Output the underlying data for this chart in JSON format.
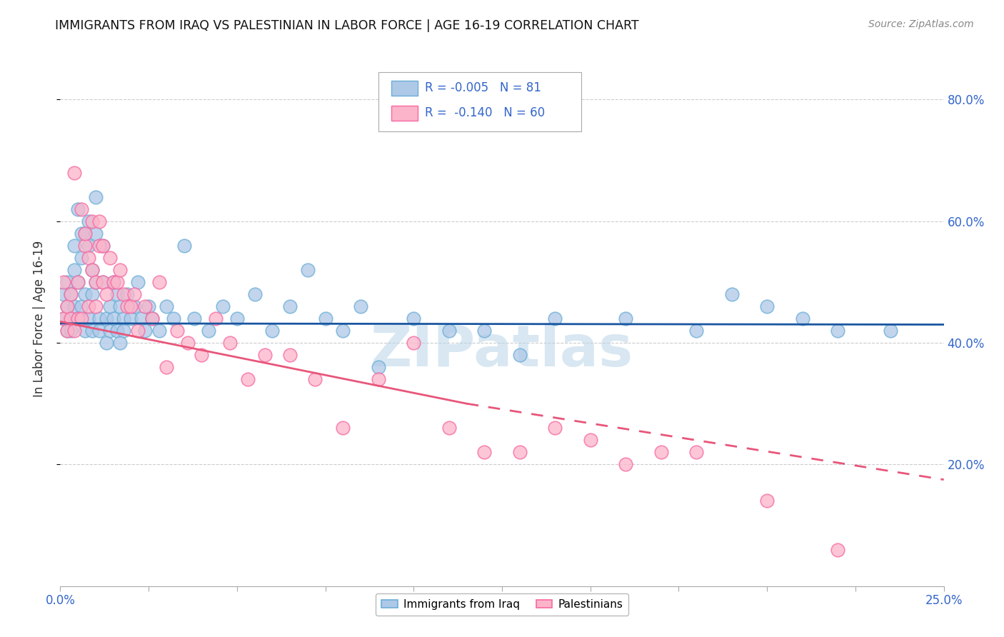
{
  "title": "IMMIGRANTS FROM IRAQ VS PALESTINIAN IN LABOR FORCE | AGE 16-19 CORRELATION CHART",
  "source": "Source: ZipAtlas.com",
  "ylabel": "In Labor Force | Age 16-19",
  "xlim": [
    0.0,
    0.25
  ],
  "ylim": [
    0.0,
    0.88
  ],
  "xtick_vals": [
    0.0,
    0.025,
    0.05,
    0.075,
    0.1,
    0.125,
    0.15,
    0.175,
    0.2,
    0.225,
    0.25
  ],
  "ytick_vals": [
    0.2,
    0.4,
    0.6,
    0.8
  ],
  "right_ytick_labels": [
    "20.0%",
    "40.0%",
    "60.0%",
    "80.0%"
  ],
  "iraq_R": "-0.005",
  "iraq_N": "81",
  "pal_R": "-0.140",
  "pal_N": "60",
  "iraq_color": "#6baed6",
  "iraq_fill": "#aec8e8",
  "pal_color": "#f768a1",
  "pal_fill": "#fbb4c9",
  "trend_iraq_color": "#1a56a0",
  "trend_pal_color": "#e8567a",
  "watermark": "ZIPatlas",
  "watermark_color": "#b8d4e8",
  "legend_label_iraq": "Immigrants from Iraq",
  "legend_label_pal": "Palestinians",
  "iraq_x": [
    0.001,
    0.001,
    0.002,
    0.002,
    0.002,
    0.003,
    0.003,
    0.003,
    0.004,
    0.004,
    0.004,
    0.005,
    0.005,
    0.005,
    0.006,
    0.006,
    0.006,
    0.007,
    0.007,
    0.007,
    0.008,
    0.008,
    0.008,
    0.009,
    0.009,
    0.009,
    0.01,
    0.01,
    0.01,
    0.011,
    0.011,
    0.012,
    0.012,
    0.013,
    0.013,
    0.014,
    0.014,
    0.015,
    0.015,
    0.016,
    0.016,
    0.017,
    0.017,
    0.018,
    0.018,
    0.019,
    0.02,
    0.021,
    0.022,
    0.023,
    0.024,
    0.025,
    0.026,
    0.028,
    0.03,
    0.032,
    0.035,
    0.038,
    0.042,
    0.046,
    0.05,
    0.055,
    0.06,
    0.065,
    0.07,
    0.075,
    0.08,
    0.085,
    0.09,
    0.1,
    0.11,
    0.12,
    0.13,
    0.14,
    0.16,
    0.18,
    0.19,
    0.2,
    0.21,
    0.22,
    0.235
  ],
  "iraq_y": [
    0.44,
    0.48,
    0.42,
    0.46,
    0.5,
    0.44,
    0.48,
    0.42,
    0.46,
    0.52,
    0.56,
    0.44,
    0.5,
    0.62,
    0.58,
    0.54,
    0.46,
    0.42,
    0.48,
    0.58,
    0.6,
    0.56,
    0.44,
    0.52,
    0.48,
    0.42,
    0.64,
    0.58,
    0.5,
    0.44,
    0.42,
    0.56,
    0.5,
    0.44,
    0.4,
    0.46,
    0.42,
    0.5,
    0.44,
    0.42,
    0.48,
    0.46,
    0.4,
    0.44,
    0.42,
    0.48,
    0.44,
    0.46,
    0.5,
    0.44,
    0.42,
    0.46,
    0.44,
    0.42,
    0.46,
    0.44,
    0.56,
    0.44,
    0.42,
    0.46,
    0.44,
    0.48,
    0.42,
    0.46,
    0.52,
    0.44,
    0.42,
    0.46,
    0.36,
    0.44,
    0.42,
    0.42,
    0.38,
    0.44,
    0.44,
    0.42,
    0.48,
    0.46,
    0.44,
    0.42,
    0.42
  ],
  "pal_x": [
    0.001,
    0.001,
    0.002,
    0.002,
    0.003,
    0.003,
    0.004,
    0.004,
    0.005,
    0.005,
    0.006,
    0.006,
    0.007,
    0.007,
    0.008,
    0.008,
    0.009,
    0.009,
    0.01,
    0.01,
    0.011,
    0.011,
    0.012,
    0.012,
    0.013,
    0.014,
    0.015,
    0.016,
    0.017,
    0.018,
    0.019,
    0.02,
    0.021,
    0.022,
    0.024,
    0.026,
    0.028,
    0.03,
    0.033,
    0.036,
    0.04,
    0.044,
    0.048,
    0.053,
    0.058,
    0.065,
    0.072,
    0.08,
    0.09,
    0.1,
    0.11,
    0.12,
    0.13,
    0.14,
    0.15,
    0.16,
    0.17,
    0.18,
    0.2,
    0.22
  ],
  "pal_y": [
    0.44,
    0.5,
    0.42,
    0.46,
    0.44,
    0.48,
    0.68,
    0.42,
    0.44,
    0.5,
    0.44,
    0.62,
    0.56,
    0.58,
    0.54,
    0.46,
    0.6,
    0.52,
    0.5,
    0.46,
    0.6,
    0.56,
    0.5,
    0.56,
    0.48,
    0.54,
    0.5,
    0.5,
    0.52,
    0.48,
    0.46,
    0.46,
    0.48,
    0.42,
    0.46,
    0.44,
    0.5,
    0.36,
    0.42,
    0.4,
    0.38,
    0.44,
    0.4,
    0.34,
    0.38,
    0.38,
    0.34,
    0.26,
    0.34,
    0.4,
    0.26,
    0.22,
    0.22,
    0.26,
    0.24,
    0.2,
    0.22,
    0.22,
    0.14,
    0.06
  ],
  "trend_iraq_x0": 0.0,
  "trend_iraq_x1": 0.25,
  "trend_iraq_y0": 0.432,
  "trend_iraq_y1": 0.43,
  "trend_pal_solid_x0": 0.0,
  "trend_pal_solid_x1": 0.115,
  "trend_pal_solid_y0": 0.435,
  "trend_pal_solid_y1": 0.3,
  "trend_pal_dash_x0": 0.115,
  "trend_pal_dash_x1": 0.25,
  "trend_pal_dash_y0": 0.3,
  "trend_pal_dash_y1": 0.175
}
